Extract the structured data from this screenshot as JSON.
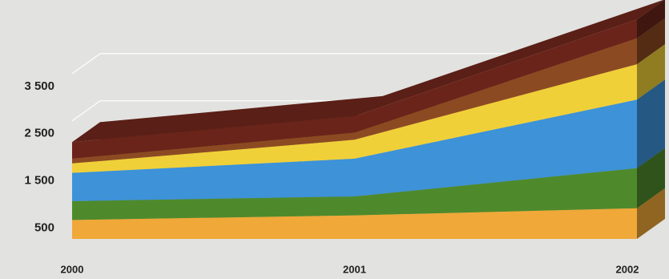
{
  "chart_data": {
    "type": "area3d",
    "categories": [
      "2000",
      "2001",
      "2002"
    ],
    "series": [
      {
        "color": "#f0a838",
        "values": [
          400,
          500,
          650
        ]
      },
      {
        "color": "#4e8a2c",
        "values": [
          400,
          400,
          850
        ]
      },
      {
        "color": "#3d92d8",
        "values": [
          600,
          800,
          1450
        ]
      },
      {
        "color": "#f0d038",
        "values": [
          200,
          400,
          750
        ]
      },
      {
        "color": "#8c4a22",
        "values": [
          100,
          150,
          550
        ]
      },
      {
        "color": "#6a241a",
        "values": [
          350,
          350,
          400
        ]
      }
    ],
    "ylim": [
      0,
      4500
    ],
    "yticks": [
      {
        "value": 500,
        "label": "500"
      },
      {
        "value": 1500,
        "label": "1 500"
      },
      {
        "value": 2500,
        "label": "2 500"
      },
      {
        "value": 3500,
        "label": "3 500"
      }
    ],
    "grid": true
  }
}
